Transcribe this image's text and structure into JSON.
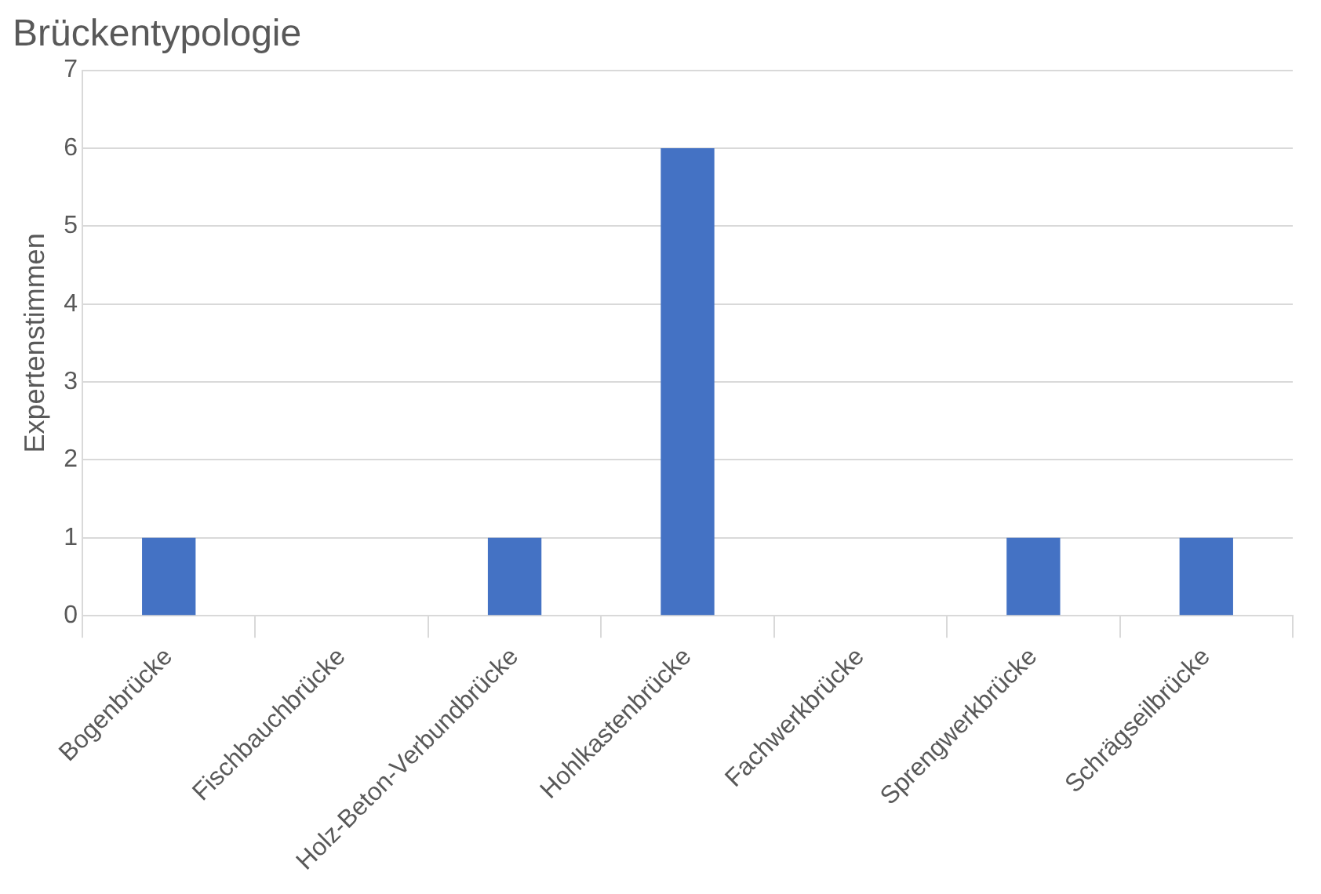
{
  "chart_data": {
    "type": "bar",
    "title": "Brückentypologie",
    "ylabel": "Expertenstimmen",
    "categories": [
      "Bogenbrücke",
      "Fischbauchbrücke",
      "Holz-Beton-Verbundbrücke",
      "Hohlkastenbrücke",
      "Fachwerkbrücke",
      "Sprengwerkbrücke",
      "Schrägseilbrücke"
    ],
    "values": [
      1,
      0,
      1,
      6,
      0,
      1,
      1
    ],
    "color": "#4472c4",
    "ylim": [
      0,
      7
    ],
    "yticks": [
      0,
      1,
      2,
      3,
      4,
      5,
      6,
      7
    ],
    "grid": "y",
    "legend": false
  }
}
